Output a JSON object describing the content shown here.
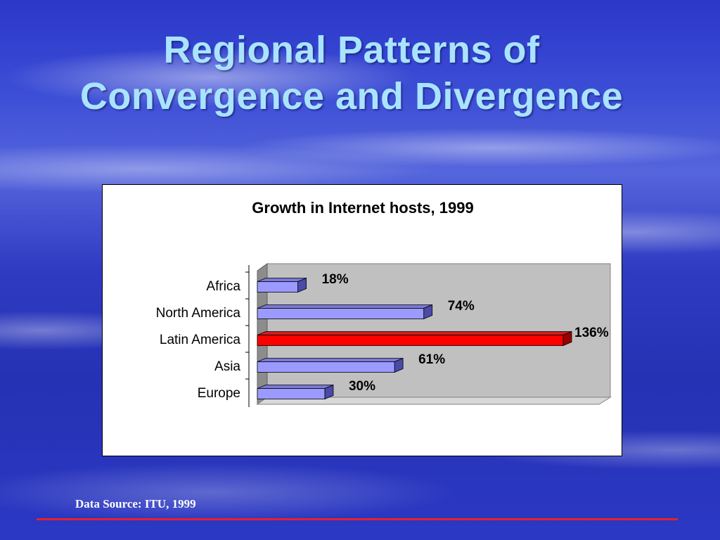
{
  "slide": {
    "title_line1": "Regional Patterns of",
    "title_line2": "Convergence and Divergence",
    "source": "Data Source: ITU, 1999"
  },
  "colors": {
    "bar": "#9b9bff",
    "highlight": "#ff0000",
    "rule": "#e8202a",
    "title": "#a9e4ff"
  },
  "chart_data": {
    "type": "bar",
    "orientation": "horizontal",
    "title": "Growth in Internet hosts, 1999",
    "categories": [
      "Africa",
      "North America",
      "Latin America",
      "Asia",
      "Europe"
    ],
    "values": [
      18,
      74,
      136,
      61,
      30
    ],
    "value_labels": [
      "18%",
      "74%",
      "136%",
      "61%",
      "30%"
    ],
    "highlight_index": 2,
    "xlim": [
      0,
      150
    ],
    "grid": false,
    "legend": "none",
    "style": "3d"
  }
}
